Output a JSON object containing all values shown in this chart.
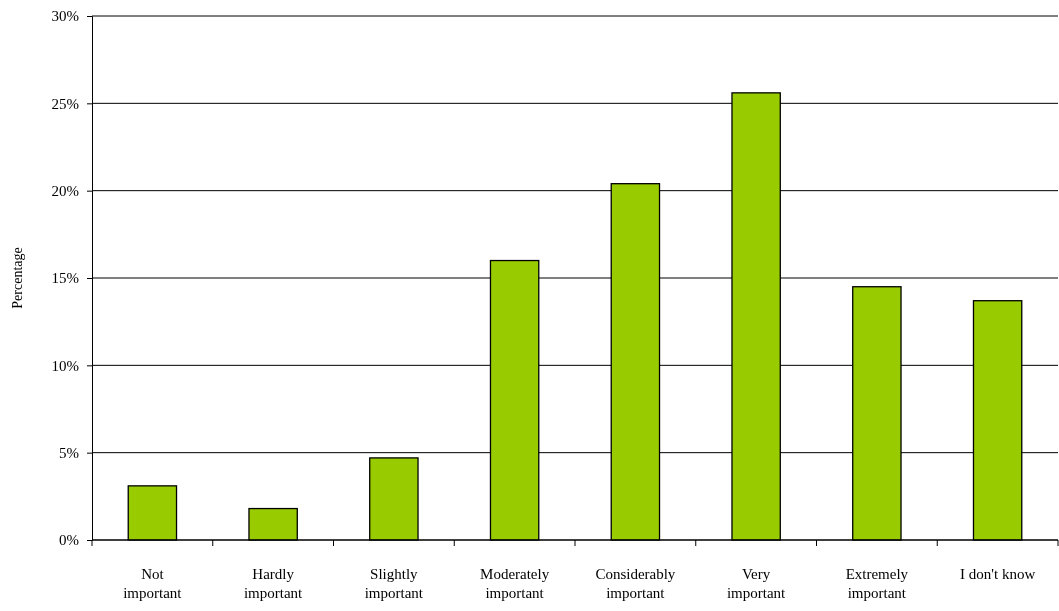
{
  "chart_data": {
    "type": "bar",
    "ylabel": "Percentage",
    "categories": [
      "Not important",
      "Hardly important",
      "Slightly important",
      "Moderately important",
      "Considerably important",
      "Very important",
      "Extremely important",
      "I don't know"
    ],
    "values": [
      3.1,
      1.8,
      4.7,
      16.0,
      20.4,
      25.6,
      14.5,
      13.7
    ],
    "color": "#99cc00",
    "ylim": [
      0,
      30
    ],
    "yticks": [
      {
        "value": 0,
        "label": "0%"
      },
      {
        "value": 5,
        "label": "5%"
      },
      {
        "value": 10,
        "label": "10%"
      },
      {
        "value": 15,
        "label": "15%"
      },
      {
        "value": 20,
        "label": "20%"
      },
      {
        "value": 25,
        "label": "25%"
      },
      {
        "value": 30,
        "label": "30%"
      }
    ],
    "grid": "y"
  }
}
